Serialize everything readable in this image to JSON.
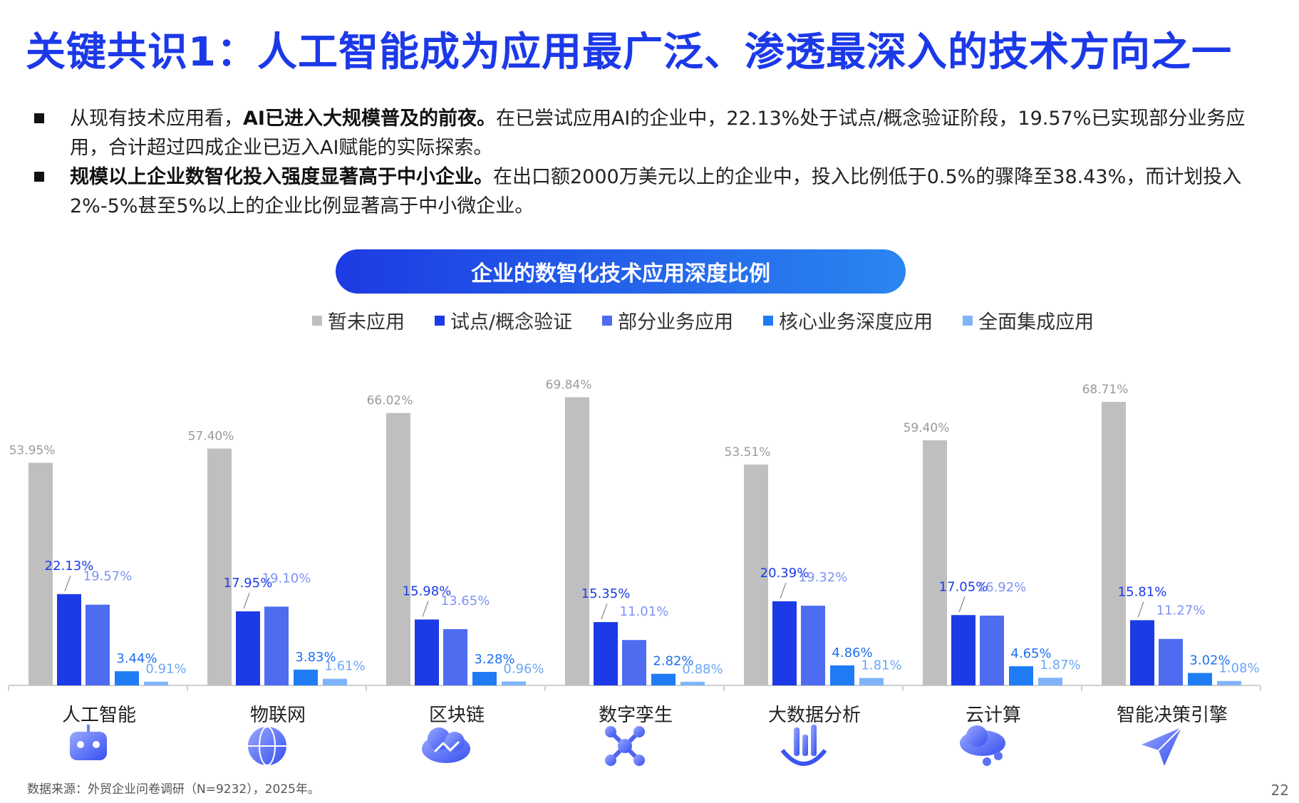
{
  "page": {
    "title": "关键共识1：人工智能成为应用最广泛、渗透最深入的技术方向之一",
    "bullets": [
      {
        "text_pre": "从现有技术应用看，",
        "text_bold": "AI已进入大规模普及的前夜。",
        "text_post": "在已尝试应用AI的企业中，22.13%处于试点/概念验证阶段，19.57%已实现部分业务应用，合计超过四成企业已迈入AI赋能的实际探索。"
      },
      {
        "text_pre": "",
        "text_bold": "规模以上企业数智化投入强度显著高于中小企业。",
        "text_post": "在出口额2000万美元以上的企业中，投入比例低于0.5%的骤降至38.43%，而计划投入2%-5%甚至5%以上的企业比例显著高于中小微企业。"
      }
    ],
    "source": "数据来源：外贸企业问卷调研（N=9232），2025年。",
    "page_number": "22"
  },
  "chart_data": {
    "type": "bar",
    "title": "企业的数智化技术应用深度比例",
    "legend_position": "top-center",
    "grid": false,
    "ylim": [
      0,
      72
    ],
    "categories": [
      "人工智能",
      "物联网",
      "区块链",
      "数字孪生",
      "大数据分析",
      "云计算",
      "智能决策引擎"
    ],
    "category_icons": [
      "robot-icon",
      "globe-network-icon",
      "blockchain-cloud-icon",
      "molecule-network-icon",
      "data-analysis-icon",
      "cloud-share-icon",
      "paper-plane-icon"
    ],
    "series": [
      {
        "name": "暂未应用",
        "color": "#bfbfbf",
        "label_color": "#9a9a9a",
        "values": [
          53.95,
          57.4,
          66.02,
          69.84,
          53.51,
          59.4,
          68.71
        ],
        "labels": [
          "53.95%",
          "57.40%",
          "66.02%",
          "69.84%",
          "53.51%",
          "59.40%",
          "68.71%"
        ]
      },
      {
        "name": "试点/概念验证",
        "color": "#1c3ae6",
        "label_color": "#1c3ae6",
        "values": [
          22.13,
          17.95,
          15.98,
          15.35,
          20.39,
          17.05,
          15.81
        ],
        "labels": [
          "22.13%",
          "17.95%",
          "15.98%",
          "15.35%",
          "20.39%",
          "17.05%",
          "15.81%"
        ]
      },
      {
        "name": "部分业务应用",
        "color": "#4e6cf0",
        "label_color": "#7e93f4",
        "values": [
          19.57,
          19.1,
          13.65,
          11.01,
          19.32,
          16.92,
          11.27
        ],
        "labels": [
          "19.57%",
          "19.10%",
          "13.65%",
          "11.01%",
          "19.32%",
          "16.92%",
          "11.27%"
        ]
      },
      {
        "name": "核心业务深度应用",
        "color": "#1f7cf5",
        "label_color": "#1f6ff0",
        "values": [
          3.44,
          3.83,
          3.28,
          2.82,
          4.86,
          4.65,
          3.02
        ],
        "labels": [
          "3.44%",
          "3.83%",
          "3.28%",
          "2.82%",
          "4.86%",
          "4.65%",
          "3.02%"
        ]
      },
      {
        "name": "全面集成应用",
        "color": "#7fb4fb",
        "label_color": "#6aa6f7",
        "values": [
          0.91,
          1.61,
          0.96,
          0.88,
          1.81,
          1.87,
          1.08
        ],
        "labels": [
          "0.91%",
          "1.61%",
          "0.96%",
          "0.88%",
          "1.81%",
          "1.87%",
          "1.08%"
        ]
      }
    ]
  }
}
